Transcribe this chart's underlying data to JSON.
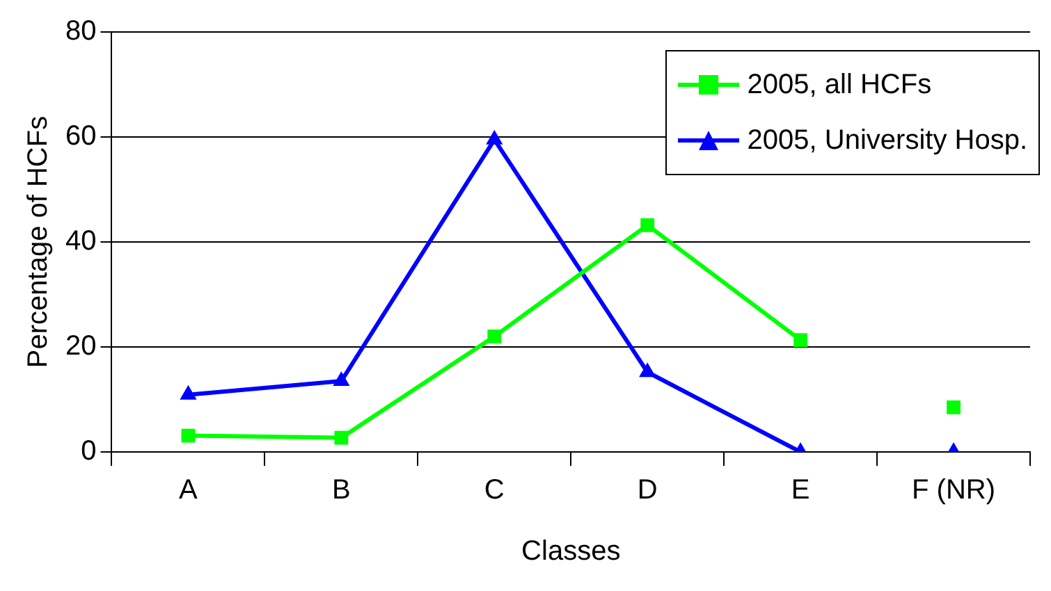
{
  "chart_data": {
    "type": "line",
    "xlabel": "Classes",
    "ylabel": "Percentage of HCFs",
    "categories": [
      "A",
      "B",
      "C",
      "D",
      "E",
      "F (NR)"
    ],
    "series": [
      {
        "name": "2005, all HCFs",
        "color": "#00ff00",
        "marker": "square",
        "values": [
          3.1,
          2.7,
          22.0,
          43.2,
          21.3,
          null
        ]
      },
      {
        "name": "2005, University Hosp.",
        "color": "#0000ff",
        "marker": "triangle",
        "values": [
          10.9,
          13.5,
          59.5,
          15.2,
          0,
          null
        ]
      },
      {
        "type": "scatter",
        "color": "#00ff00",
        "marker": "square",
        "values": [
          null,
          null,
          null,
          null,
          null,
          8.5
        ]
      },
      {
        "type": "scatter",
        "color": "#0000ff",
        "marker": "triangle",
        "values": [
          null,
          null,
          null,
          null,
          null,
          0
        ]
      }
    ],
    "ylim": [
      0,
      80
    ],
    "yticks": [
      0,
      20,
      40,
      60,
      80
    ],
    "grid": "y",
    "legend": "top right"
  }
}
